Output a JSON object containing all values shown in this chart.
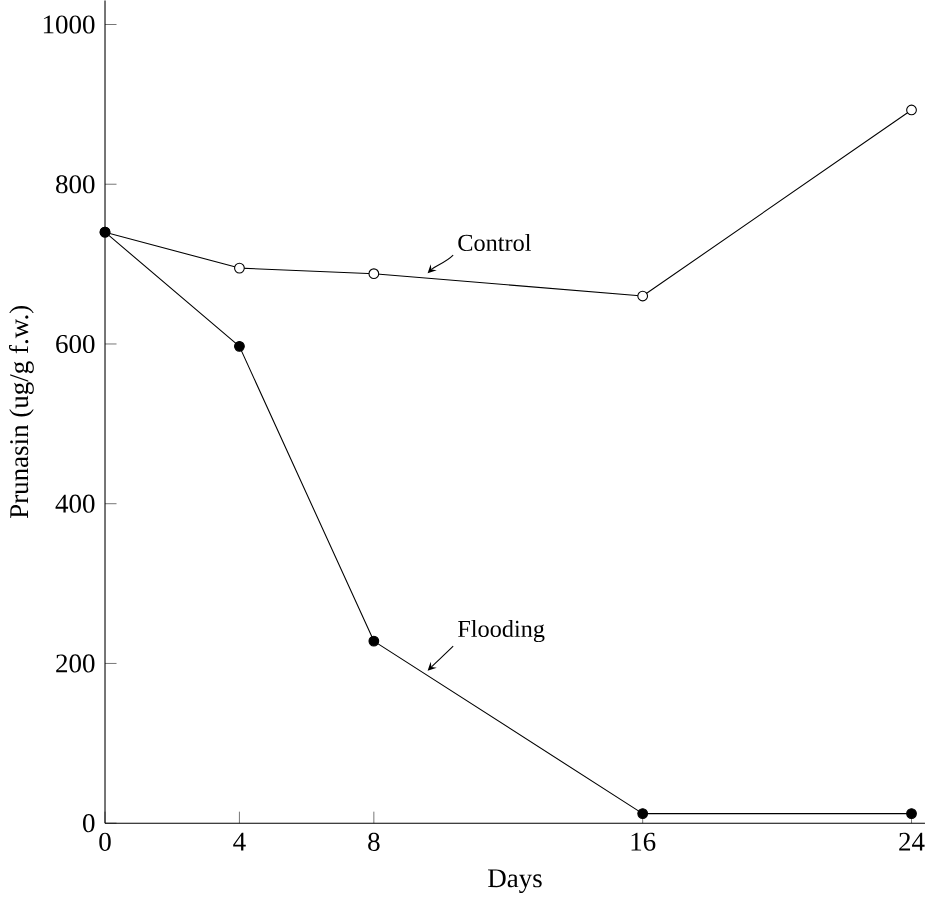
{
  "chart_data": {
    "type": "line",
    "xlabel": "Days",
    "ylabel": "Prunasin (ug/g f.w.)",
    "x": [
      0,
      4,
      8,
      16,
      24
    ],
    "series": [
      {
        "name": "Control",
        "color": "#000000",
        "values": [
          740,
          695,
          688,
          660,
          893
        ]
      },
      {
        "name": "Flooding",
        "color": "#000000",
        "values": [
          740,
          597,
          228,
          12,
          12
        ]
      }
    ],
    "xlim": [
      0,
      24.4
    ],
    "ylim": [
      0,
      1030
    ],
    "xticks": [
      0,
      4,
      8,
      16,
      24
    ],
    "yticks": [
      0,
      200,
      400,
      600,
      800,
      1000
    ],
    "marker": "circle",
    "line_style": "solid",
    "grid": false,
    "legend": false
  }
}
